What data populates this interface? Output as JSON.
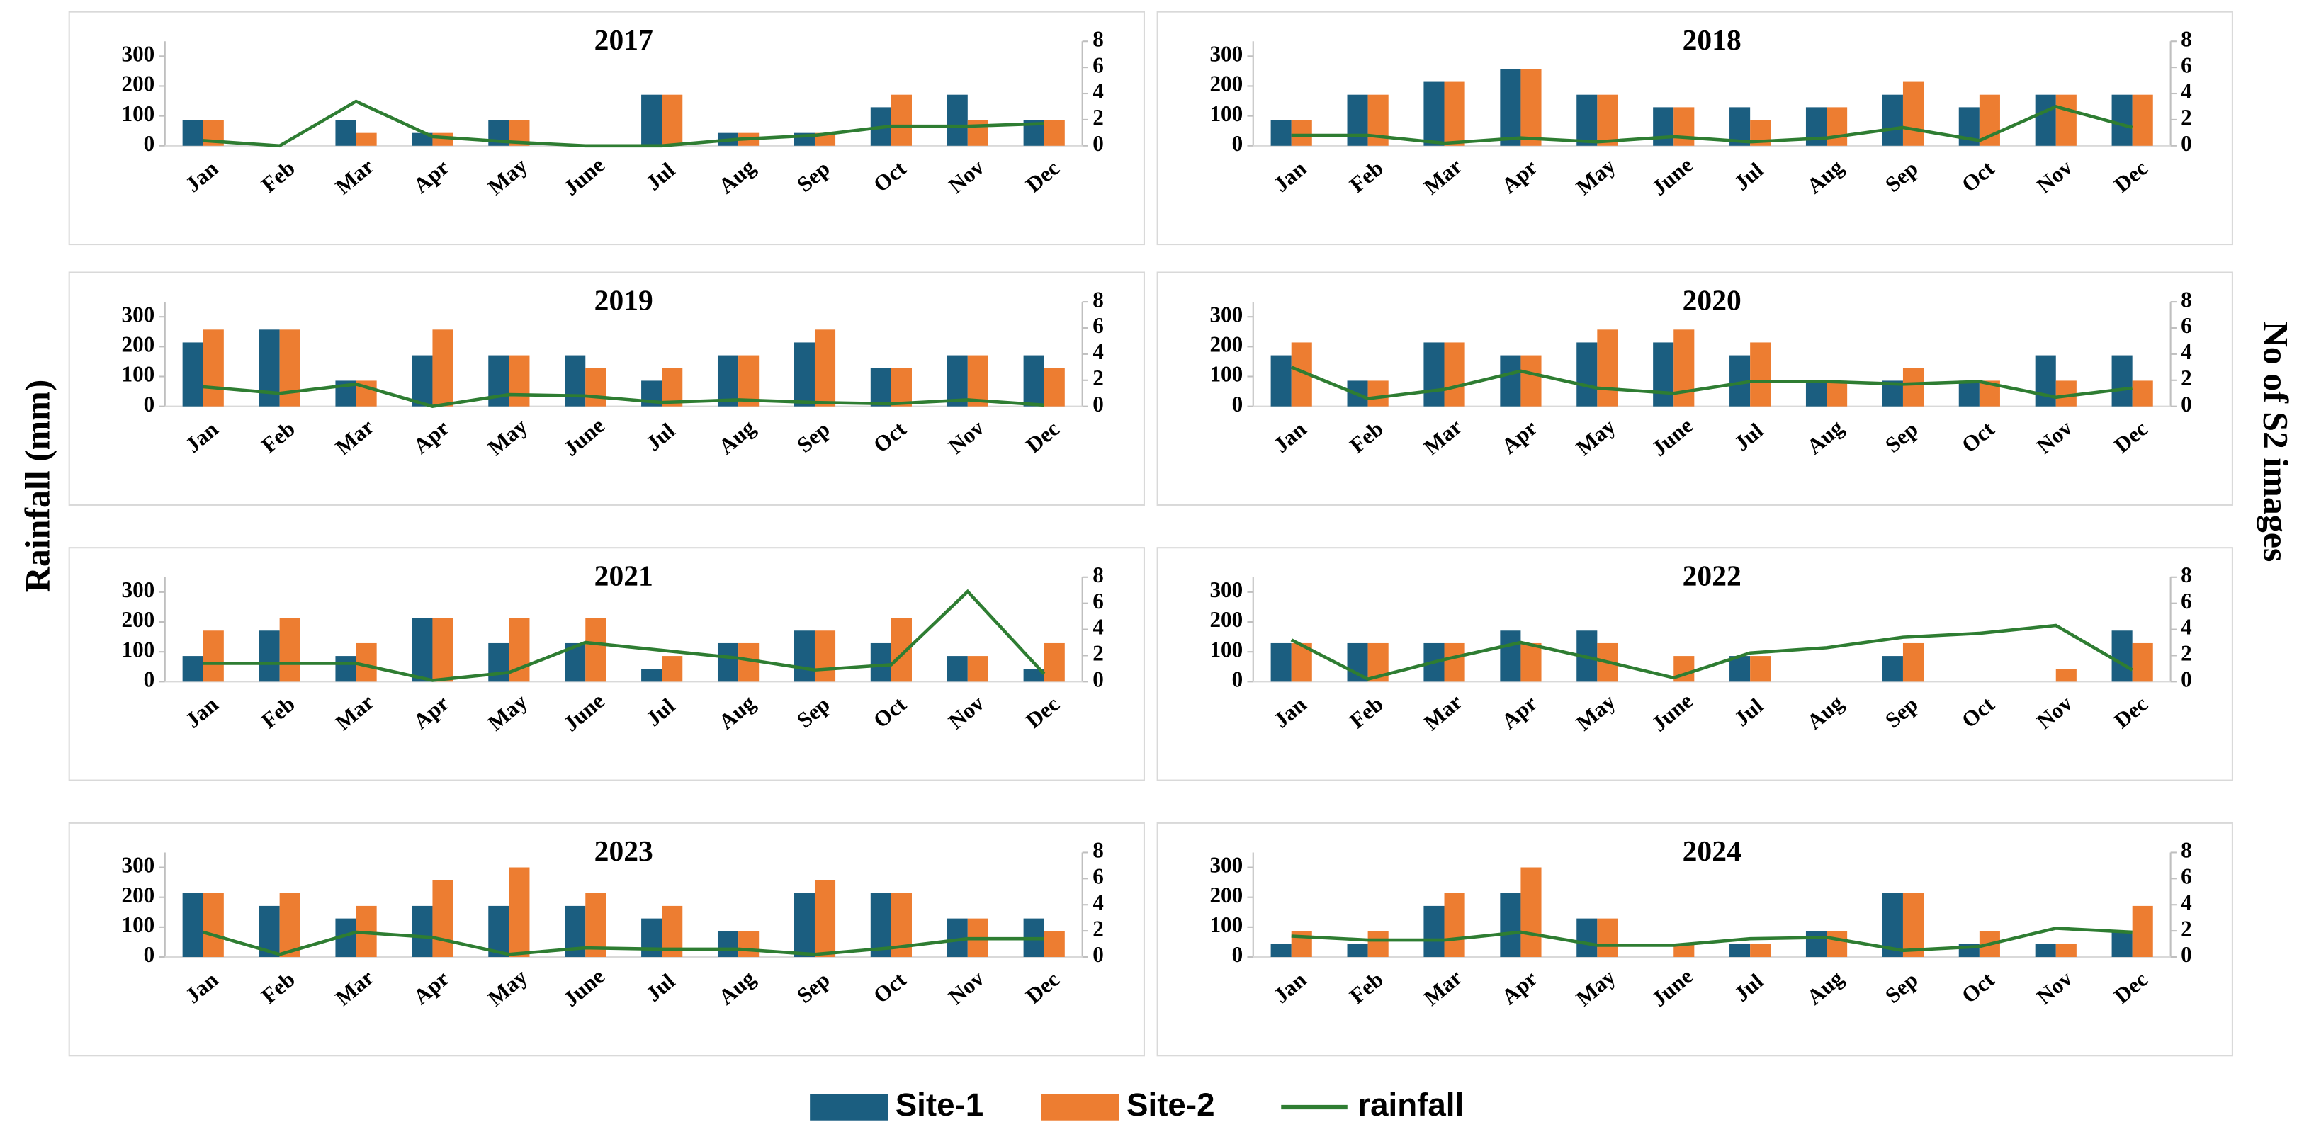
{
  "ylabel": "Rainfall (mm)",
  "y2label": "No of S2 images",
  "chart_data": [
    {
      "type": "combo",
      "title": "2017",
      "categories": [
        "Jan",
        "Feb",
        "Mar",
        "Apr",
        "May",
        "June",
        "Jul",
        "Aug",
        "Sep",
        "Oct",
        "Nov",
        "Dec"
      ],
      "series": [
        {
          "name": "Site-1",
          "color": "#1b5e80",
          "values": [
            86,
            0,
            86,
            43,
            86,
            0,
            171,
            43,
            43,
            129,
            171,
            86
          ]
        },
        {
          "name": "Site-2",
          "color": "#ed7d31",
          "values": [
            86,
            0,
            43,
            43,
            86,
            0,
            171,
            43,
            43,
            171,
            86,
            86
          ]
        },
        {
          "name": "rainfall",
          "color": "#2e7d32",
          "axis": "y2",
          "values": [
            0.4,
            0,
            3.4,
            0.7,
            0.3,
            0,
            0,
            0.5,
            0.8,
            1.5,
            1.5,
            1.7
          ]
        }
      ],
      "ylim": [
        0,
        350
      ],
      "yticks": [
        0,
        100,
        200,
        300
      ],
      "y2lim": [
        0,
        8
      ],
      "y2ticks": [
        0,
        2,
        4,
        6,
        8
      ]
    },
    {
      "type": "combo",
      "title": "2018",
      "categories": [
        "Jan",
        "Feb",
        "Mar",
        "Apr",
        "May",
        "June",
        "Jul",
        "Aug",
        "Sep",
        "Oct",
        "Nov",
        "Dec"
      ],
      "series": [
        {
          "name": "Site-1",
          "color": "#1b5e80",
          "values": [
            86,
            171,
            214,
            257,
            171,
            129,
            129,
            129,
            171,
            129,
            171,
            171
          ]
        },
        {
          "name": "Site-2",
          "color": "#ed7d31",
          "values": [
            86,
            171,
            214,
            257,
            171,
            129,
            86,
            129,
            214,
            171,
            171,
            171
          ]
        },
        {
          "name": "rainfall",
          "color": "#2e7d32",
          "axis": "y2",
          "values": [
            0.8,
            0.8,
            0.2,
            0.6,
            0.3,
            0.7,
            0.3,
            0.6,
            1.4,
            0.4,
            3,
            1.4
          ]
        }
      ],
      "ylim": [
        0,
        350
      ],
      "yticks": [
        0,
        100,
        200,
        300
      ],
      "y2lim": [
        0,
        8
      ],
      "y2ticks": [
        0,
        2,
        4,
        6,
        8
      ]
    },
    {
      "type": "combo",
      "title": "2019",
      "categories": [
        "Jan",
        "Feb",
        "Mar",
        "Apr",
        "May",
        "June",
        "Jul",
        "Aug",
        "Sep",
        "Oct",
        "Nov",
        "Dec"
      ],
      "series": [
        {
          "name": "Site-1",
          "color": "#1b5e80",
          "values": [
            214,
            257,
            86,
            171,
            171,
            171,
            86,
            171,
            214,
            129,
            171,
            171
          ]
        },
        {
          "name": "Site-2",
          "color": "#ed7d31",
          "values": [
            257,
            257,
            86,
            257,
            171,
            129,
            129,
            171,
            257,
            129,
            171,
            129
          ]
        },
        {
          "name": "rainfall",
          "color": "#2e7d32",
          "axis": "y2",
          "values": [
            1.5,
            1,
            1.7,
            0,
            0.9,
            0.8,
            0.3,
            0.5,
            0.3,
            0.2,
            0.5,
            0.1
          ]
        }
      ],
      "ylim": [
        0,
        350
      ],
      "yticks": [
        0,
        100,
        200,
        300
      ],
      "y2lim": [
        0,
        8
      ],
      "y2ticks": [
        0,
        2,
        4,
        6,
        8
      ]
    },
    {
      "type": "combo",
      "title": "2020",
      "categories": [
        "Jan",
        "Feb",
        "Mar",
        "Apr",
        "May",
        "June",
        "Jul",
        "Aug",
        "Sep",
        "Oct",
        "Nov",
        "Dec"
      ],
      "series": [
        {
          "name": "Site-1",
          "color": "#1b5e80",
          "values": [
            171,
            86,
            214,
            171,
            214,
            214,
            171,
            86,
            86,
            86,
            171,
            171
          ]
        },
        {
          "name": "Site-2",
          "color": "#ed7d31",
          "values": [
            214,
            86,
            214,
            171,
            257,
            257,
            214,
            86,
            129,
            86,
            86,
            86
          ]
        },
        {
          "name": "rainfall",
          "color": "#2e7d32",
          "axis": "y2",
          "values": [
            3,
            0.6,
            1.3,
            2.7,
            1.4,
            1,
            1.9,
            1.9,
            1.7,
            1.9,
            0.7,
            1.4
          ]
        }
      ],
      "ylim": [
        0,
        350
      ],
      "yticks": [
        0,
        100,
        200,
        300
      ],
      "y2lim": [
        0,
        8
      ],
      "y2ticks": [
        0,
        2,
        4,
        6,
        8
      ]
    },
    {
      "type": "combo",
      "title": "2021",
      "categories": [
        "Jan",
        "Feb",
        "Mar",
        "Apr",
        "May",
        "June",
        "Jul",
        "Aug",
        "Sep",
        "Oct",
        "Nov",
        "Dec"
      ],
      "series": [
        {
          "name": "Site-1",
          "color": "#1b5e80",
          "values": [
            86,
            171,
            86,
            214,
            129,
            129,
            43,
            129,
            171,
            129,
            86,
            43
          ]
        },
        {
          "name": "Site-2",
          "color": "#ed7d31",
          "values": [
            171,
            214,
            129,
            214,
            214,
            214,
            86,
            129,
            171,
            214,
            86,
            129
          ]
        },
        {
          "name": "rainfall",
          "color": "#2e7d32",
          "axis": "y2",
          "values": [
            1.4,
            1.4,
            1.4,
            0.1,
            0.7,
            3,
            2.4,
            1.8,
            0.9,
            1.3,
            6.9,
            0.6
          ]
        }
      ],
      "ylim": [
        0,
        350
      ],
      "yticks": [
        0,
        100,
        200,
        300
      ],
      "y2lim": [
        0,
        8
      ],
      "y2ticks": [
        0,
        2,
        4,
        6,
        8
      ]
    },
    {
      "type": "combo",
      "title": "2022",
      "categories": [
        "Jan",
        "Feb",
        "Mar",
        "Apr",
        "May",
        "June",
        "Jul",
        "Aug",
        "Sep",
        "Oct",
        "Nov",
        "Dec"
      ],
      "series": [
        {
          "name": "Site-1",
          "color": "#1b5e80",
          "values": [
            129,
            129,
            129,
            171,
            171,
            0,
            86,
            0,
            86,
            0,
            0,
            171
          ]
        },
        {
          "name": "Site-2",
          "color": "#ed7d31",
          "values": [
            129,
            129,
            129,
            129,
            129,
            86,
            86,
            0,
            129,
            0,
            43,
            129
          ]
        },
        {
          "name": "rainfall",
          "color": "#2e7d32",
          "axis": "y2",
          "values": [
            3.2,
            0.2,
            1.7,
            3,
            1.7,
            0.3,
            2.2,
            2.6,
            3.4,
            3.7,
            4.3,
            0.9
          ]
        }
      ],
      "ylim": [
        0,
        350
      ],
      "yticks": [
        0,
        100,
        200,
        300
      ],
      "y2lim": [
        0,
        8
      ],
      "y2ticks": [
        0,
        2,
        4,
        6,
        8
      ]
    },
    {
      "type": "combo",
      "title": "2023",
      "categories": [
        "Jan",
        "Feb",
        "Mar",
        "Apr",
        "May",
        "June",
        "Jul",
        "Aug",
        "Sep",
        "Oct",
        "Nov",
        "Dec"
      ],
      "series": [
        {
          "name": "Site-1",
          "color": "#1b5e80",
          "values": [
            214,
            171,
            129,
            171,
            171,
            171,
            129,
            86,
            214,
            214,
            129,
            129
          ]
        },
        {
          "name": "Site-2",
          "color": "#ed7d31",
          "values": [
            214,
            214,
            171,
            257,
            300,
            214,
            171,
            86,
            257,
            214,
            129,
            86
          ]
        },
        {
          "name": "rainfall",
          "color": "#2e7d32",
          "axis": "y2",
          "values": [
            1.9,
            0.2,
            1.9,
            1.5,
            0.2,
            0.7,
            0.6,
            0.6,
            0.2,
            0.7,
            1.4,
            1.4
          ]
        }
      ],
      "ylim": [
        0,
        350
      ],
      "yticks": [
        0,
        100,
        200,
        300
      ],
      "y2lim": [
        0,
        8
      ],
      "y2ticks": [
        0,
        2,
        4,
        6,
        8
      ]
    },
    {
      "type": "combo",
      "title": "2024",
      "categories": [
        "Jan",
        "Feb",
        "Mar",
        "Apr",
        "May",
        "June",
        "Jul",
        "Aug",
        "Sep",
        "Oct",
        "Nov",
        "Dec"
      ],
      "series": [
        {
          "name": "Site-1",
          "color": "#1b5e80",
          "values": [
            43,
            43,
            171,
            214,
            129,
            0,
            43,
            86,
            214,
            43,
            43,
            86
          ]
        },
        {
          "name": "Site-2",
          "color": "#ed7d31",
          "values": [
            86,
            86,
            214,
            300,
            129,
            43,
            43,
            86,
            214,
            86,
            43,
            171
          ]
        },
        {
          "name": "rainfall",
          "color": "#2e7d32",
          "axis": "y2",
          "values": [
            1.6,
            1.3,
            1.3,
            1.9,
            0.9,
            0.9,
            1.4,
            1.5,
            0.5,
            0.8,
            2.2,
            1.9
          ]
        }
      ],
      "ylim": [
        0,
        350
      ],
      "yticks": [
        0,
        100,
        200,
        300
      ],
      "y2lim": [
        0,
        8
      ],
      "y2ticks": [
        0,
        2,
        4,
        6,
        8
      ]
    }
  ]
}
